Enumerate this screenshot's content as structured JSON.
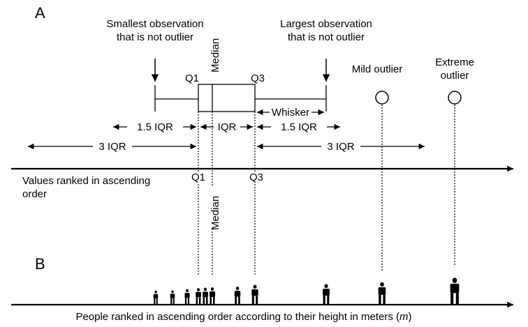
{
  "panel_a": {
    "label": "A",
    "callouts": {
      "smallest_line1": "Smallest observation",
      "smallest_line2": "that is not outlier",
      "largest_line1": "Largest observation",
      "largest_line2": "that is not outlier",
      "mild_outlier": "Mild outlier",
      "extreme_line1": "Extreme",
      "extreme_line2": "outlier"
    },
    "box_labels": {
      "q1": "Q1",
      "q3": "Q3",
      "median": "Median"
    },
    "spans": {
      "whisker": "Whisker",
      "iqr": "IQR",
      "iqr_1_5_left": "1.5 IQR",
      "iqr_1_5_right": "1.5 IQR",
      "iqr_3_left": "3 IQR",
      "iqr_3_right": "3 IQR"
    },
    "axis": {
      "caption_line1": "Values ranked in ascending",
      "caption_line2": "order",
      "q1": "Q1",
      "q3": "Q3",
      "median": "Median"
    }
  },
  "panel_b": {
    "label": "B",
    "caption_prefix": "People ranked in ascending order according to their height in meters (",
    "caption_unit": "m",
    "caption_suffix": ")",
    "people": [
      {
        "height": 0.36
      },
      {
        "height": 0.37
      },
      {
        "height": 0.4
      },
      {
        "height": 0.43
      },
      {
        "height": 0.44
      },
      {
        "height": 0.45
      },
      {
        "height": 0.47
      },
      {
        "height": 0.52
      },
      {
        "height": 0.54
      },
      {
        "height": 0.59
      },
      {
        "height": 0.71
      },
      {
        "height": 1.0
      }
    ]
  }
}
